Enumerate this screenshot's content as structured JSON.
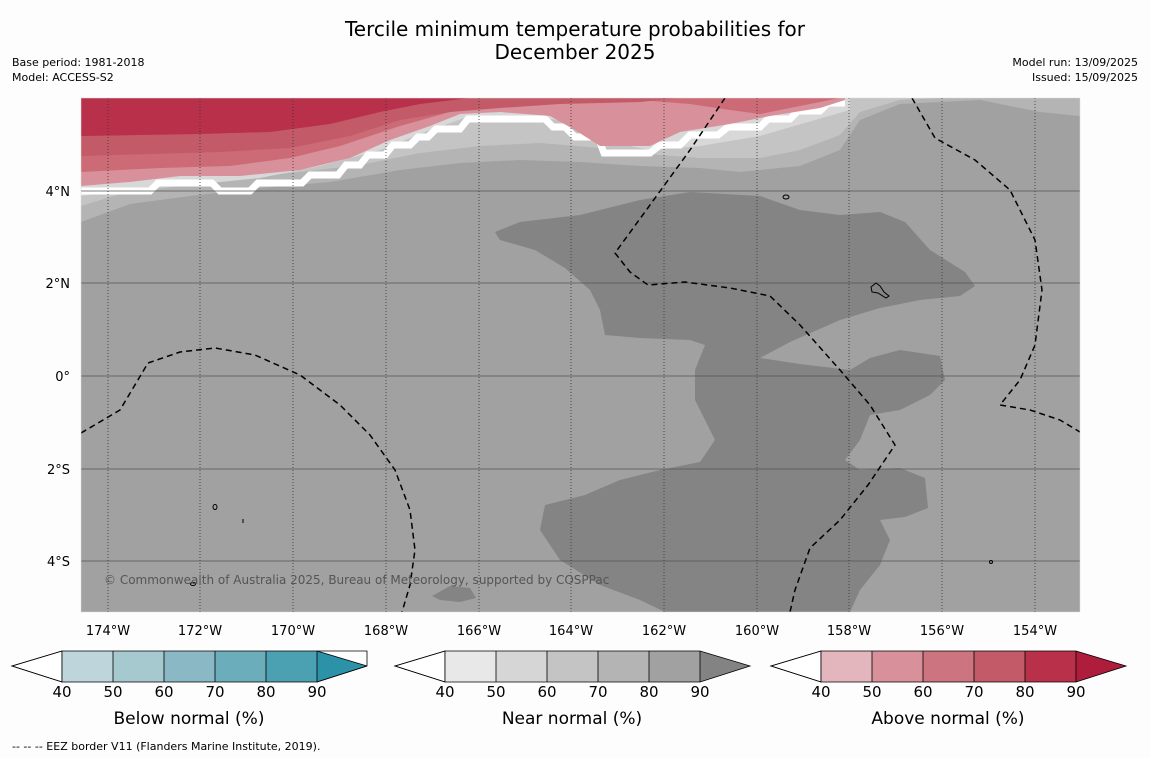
{
  "title": "Tercile minimum temperature probabilities for\nDecember 2025",
  "meta_left": {
    "base_period": "Base period: 1981-2018",
    "model": "Model: ACCESS-S2"
  },
  "meta_right": {
    "model_run": "Model run: 13/09/2025",
    "issued": "Issued: 15/09/2025"
  },
  "copyright": "© Commonwealth of Australia 2025, Bureau of Meteorology, supported by COSPPac",
  "lat_labels": [
    "4°N",
    "2°N",
    "0°",
    "2°S",
    "4°S"
  ],
  "lon_labels": [
    "174°W",
    "172°W",
    "170°W",
    "168°W",
    "166°W",
    "164°W",
    "162°W",
    "160°W",
    "158°W",
    "156°W",
    "154°W"
  ],
  "colorbars": [
    {
      "title": "Below normal (%)",
      "ticks": [
        "40",
        "50",
        "60",
        "70",
        "80",
        "90"
      ],
      "colors": [
        "#bfd5dc",
        "#a6c8cf",
        "#8ab8c4",
        "#6cadbb",
        "#4ba1b1",
        "#2b92a7"
      ]
    },
    {
      "title": "Near normal (%)",
      "ticks": [
        "40",
        "50",
        "60",
        "70",
        "80",
        "90"
      ],
      "colors": [
        "#e8e8e8",
        "#d6d6d6",
        "#c4c4c4",
        "#b4b4b4",
        "#a1a1a1",
        "#838383"
      ]
    },
    {
      "title": "Above normal (%)",
      "ticks": [
        "40",
        "50",
        "60",
        "70",
        "80",
        "90"
      ],
      "colors": [
        "#e3b6bd",
        "#d8919a",
        "#cc747f",
        "#c35a68",
        "#b9304a",
        "#ae1d3b"
      ]
    }
  ],
  "footer": "--  --  -- EEZ border V11 (Flanders Marine Institute, 2019)."
}
